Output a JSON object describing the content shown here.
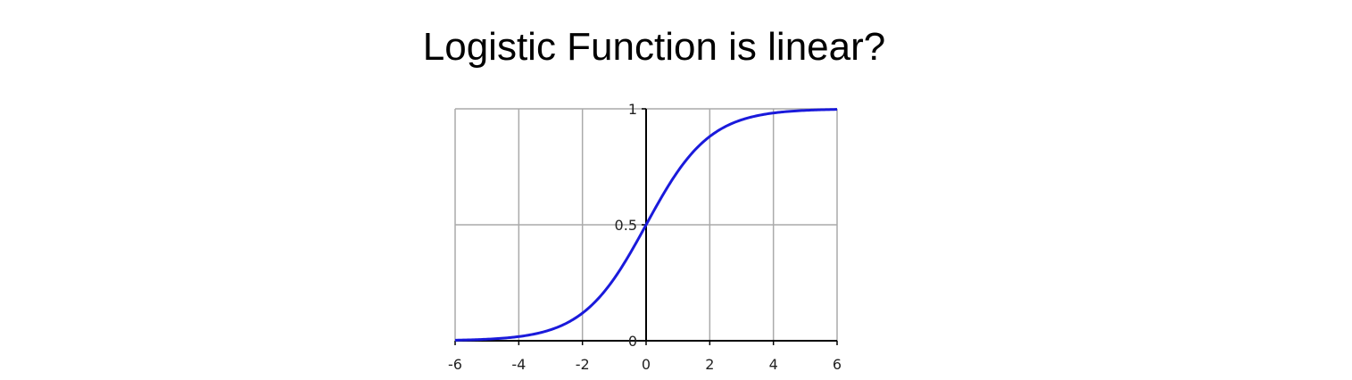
{
  "slide": {
    "title": "Logistic Function is linear?"
  },
  "chart_data": {
    "type": "line",
    "title": "",
    "xlabel": "",
    "ylabel": "",
    "xlim": [
      -6,
      6
    ],
    "ylim": [
      0,
      1
    ],
    "x_ticks": [
      -6,
      -4,
      -2,
      0,
      2,
      4,
      6
    ],
    "x_tick_labels": [
      "-6",
      "-4",
      "-2",
      "0",
      "2",
      "4",
      "6"
    ],
    "y_ticks": [
      0,
      0.5,
      1
    ],
    "y_tick_labels": [
      "0",
      "0.5",
      "1"
    ],
    "grid": true,
    "colors": {
      "curve": "#1a1adb",
      "grid": "#aaaaaa",
      "axis": "#000000"
    },
    "series": [
      {
        "function": "1 / (1 + e^(-x))",
        "x": [
          -6,
          -5,
          -4,
          -3,
          -2,
          -1,
          0,
          1,
          2,
          3,
          4,
          5,
          6
        ],
        "values": [
          0.0025,
          0.0067,
          0.018,
          0.047,
          0.119,
          0.269,
          0.5,
          0.731,
          0.881,
          0.953,
          0.982,
          0.993,
          0.9975
        ]
      }
    ]
  }
}
